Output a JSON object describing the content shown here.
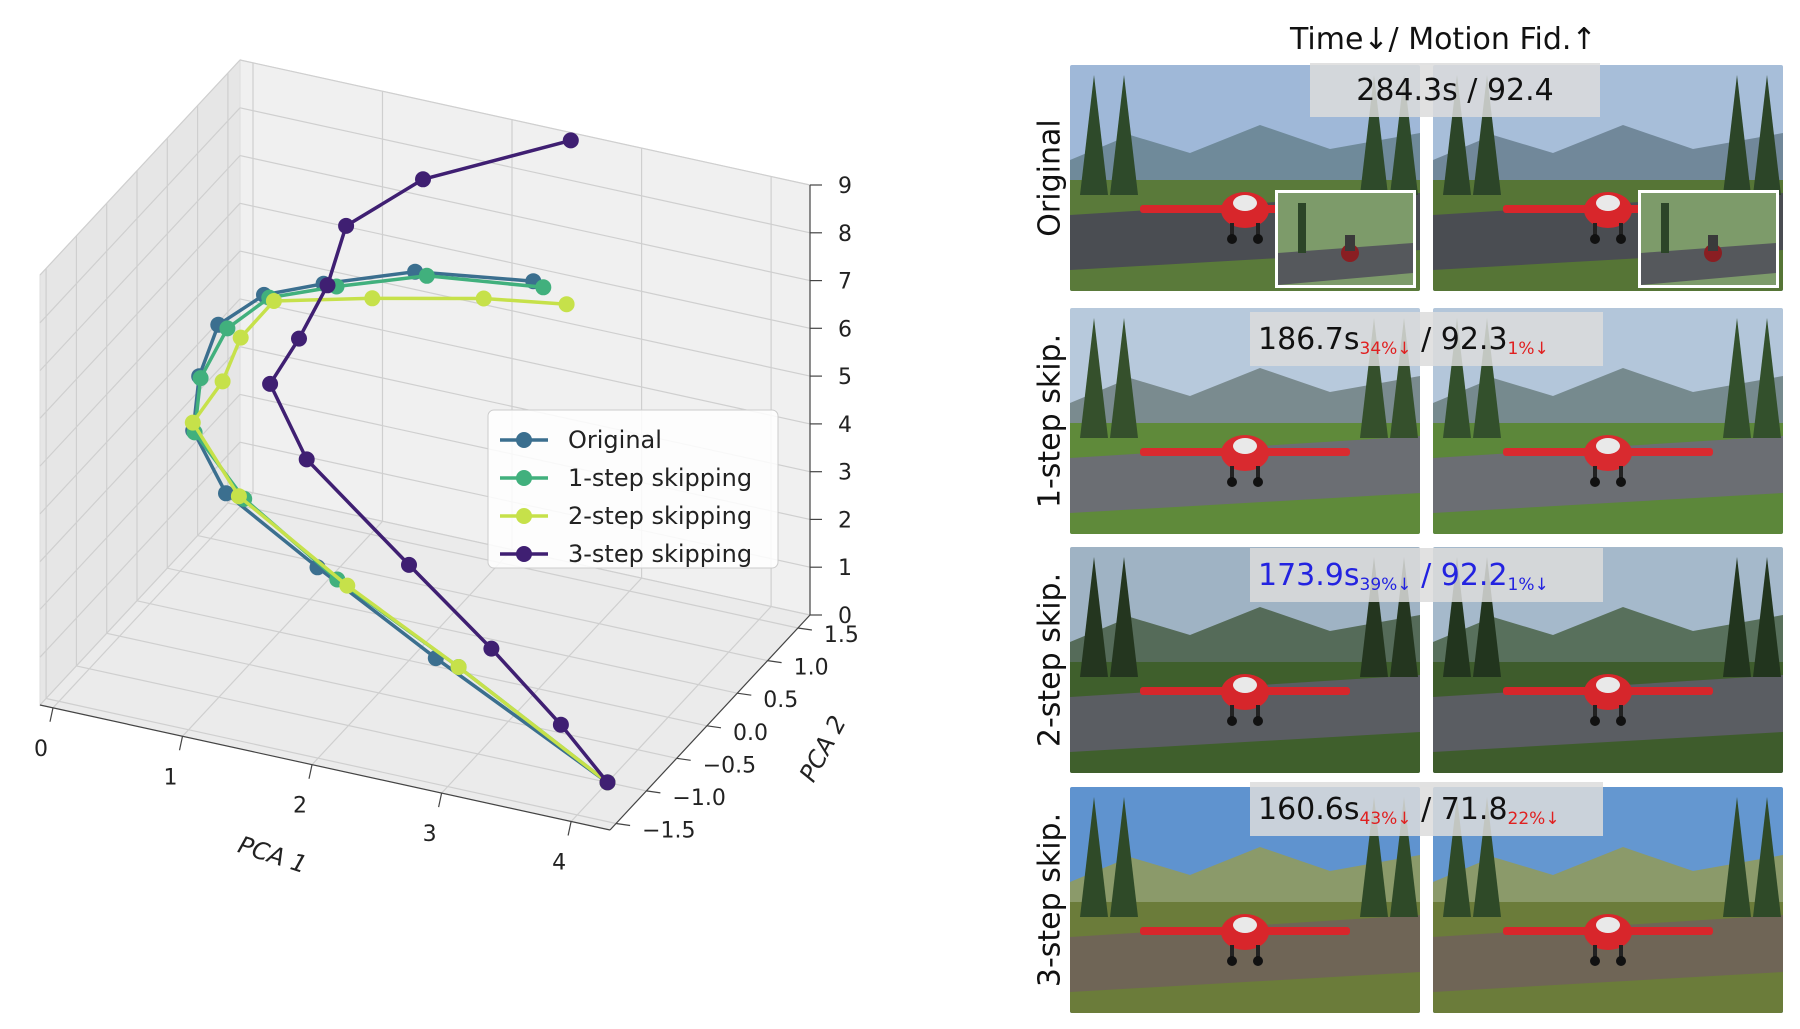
{
  "chart_data": {
    "type": "line3d",
    "xlabel": "PCA 1",
    "ylabel": "PCA 2",
    "zlabel": "",
    "x_ticks": [
      "0",
      "1",
      "2",
      "3",
      "4"
    ],
    "y_ticks": [
      "−1.5",
      "−1.0",
      "−0.5",
      "0.0",
      "0.5",
      "1.0",
      "1.5"
    ],
    "z_ticks": [
      "0",
      "1",
      "2",
      "3",
      "4",
      "5",
      "6",
      "7",
      "8",
      "9"
    ],
    "xlim": [
      -0.1,
      4.3
    ],
    "ylim": [
      -1.6,
      1.7
    ],
    "zlim": [
      0,
      9
    ],
    "legend_position": "center",
    "series": [
      {
        "name": "Original",
        "color": "#3b6f8f",
        "points": [
          [
            3.1,
            -0.3,
            9
          ],
          [
            2.0,
            0.1,
            8
          ],
          [
            1.2,
            0.3,
            7
          ],
          [
            0.6,
            0.6,
            6
          ],
          [
            0.2,
            0.7,
            5
          ],
          [
            0.1,
            0.6,
            4
          ],
          [
            0.1,
            0.5,
            3
          ],
          [
            0.4,
            0.4,
            2
          ],
          [
            1.2,
            0.2,
            1.2
          ],
          [
            2.3,
            -0.2,
            0.5
          ],
          [
            4.0,
            -1.0,
            0
          ]
        ]
      },
      {
        "name": "1-step skipping",
        "color": "#41b07d",
        "points": [
          [
            3.2,
            -0.35,
            9
          ],
          [
            2.1,
            0.08,
            8
          ],
          [
            1.3,
            0.3,
            7
          ],
          [
            0.65,
            0.58,
            6
          ],
          [
            0.28,
            0.68,
            5
          ],
          [
            0.12,
            0.58,
            4
          ],
          [
            0.12,
            0.48,
            3
          ],
          [
            0.55,
            0.38,
            2
          ],
          [
            1.4,
            0.1,
            1.2
          ],
          [
            2.5,
            -0.25,
            0.5
          ],
          [
            4.0,
            -1.0,
            0
          ]
        ]
      },
      {
        "name": "2-step skipping",
        "color": "#c6e14a",
        "points": [
          [
            3.45,
            -0.5,
            9
          ],
          [
            2.6,
            -0.05,
            8
          ],
          [
            1.6,
            0.25,
            7
          ],
          [
            0.7,
            0.55,
            6
          ],
          [
            0.42,
            0.6,
            5
          ],
          [
            0.28,
            0.6,
            4
          ],
          [
            0.05,
            0.6,
            3
          ],
          [
            0.5,
            0.4,
            2
          ],
          [
            1.5,
            0.05,
            1.2
          ],
          [
            2.5,
            -0.25,
            0.5
          ],
          [
            4.0,
            -1.0,
            0
          ]
        ]
      },
      {
        "name": "3-step skipping",
        "color": "#3f1f72",
        "points": [
          [
            2.5,
            1.6,
            9
          ],
          [
            1.5,
            1.3,
            8
          ],
          [
            1.0,
            1.1,
            7
          ],
          [
            0.95,
            0.9,
            6
          ],
          [
            0.8,
            0.75,
            5
          ],
          [
            0.6,
            0.7,
            4
          ],
          [
            1.0,
            0.45,
            3
          ],
          [
            2.0,
            0.0,
            2
          ],
          [
            2.8,
            -0.35,
            1.2
          ],
          [
            3.5,
            -0.7,
            0.5
          ],
          [
            4.0,
            -1.0,
            0
          ]
        ]
      }
    ]
  },
  "panel": {
    "header": "Time↓/ Motion Fid.↑",
    "rows": [
      {
        "label": "Original",
        "time": "284.3s",
        "time_pct": "",
        "sep": " / ",
        "fid": "92.4",
        "fid_pct": "",
        "highlight": false
      },
      {
        "label": "1-step skip.",
        "time": "186.7s",
        "time_pct": "34%↓",
        "sep": " / ",
        "fid": "92.3",
        "fid_pct": "1%↓",
        "highlight": false
      },
      {
        "label": "2-step skip.",
        "time": "173.9s",
        "time_pct": "39%↓",
        "sep": " / ",
        "fid": "92.2",
        "fid_pct": "1%↓",
        "highlight": true
      },
      {
        "label": "3-step skip.",
        "time": "160.6s",
        "time_pct": "43%↓",
        "sep": " / ",
        "fid": "71.8",
        "fid_pct": "22%↓",
        "highlight": false
      }
    ]
  }
}
